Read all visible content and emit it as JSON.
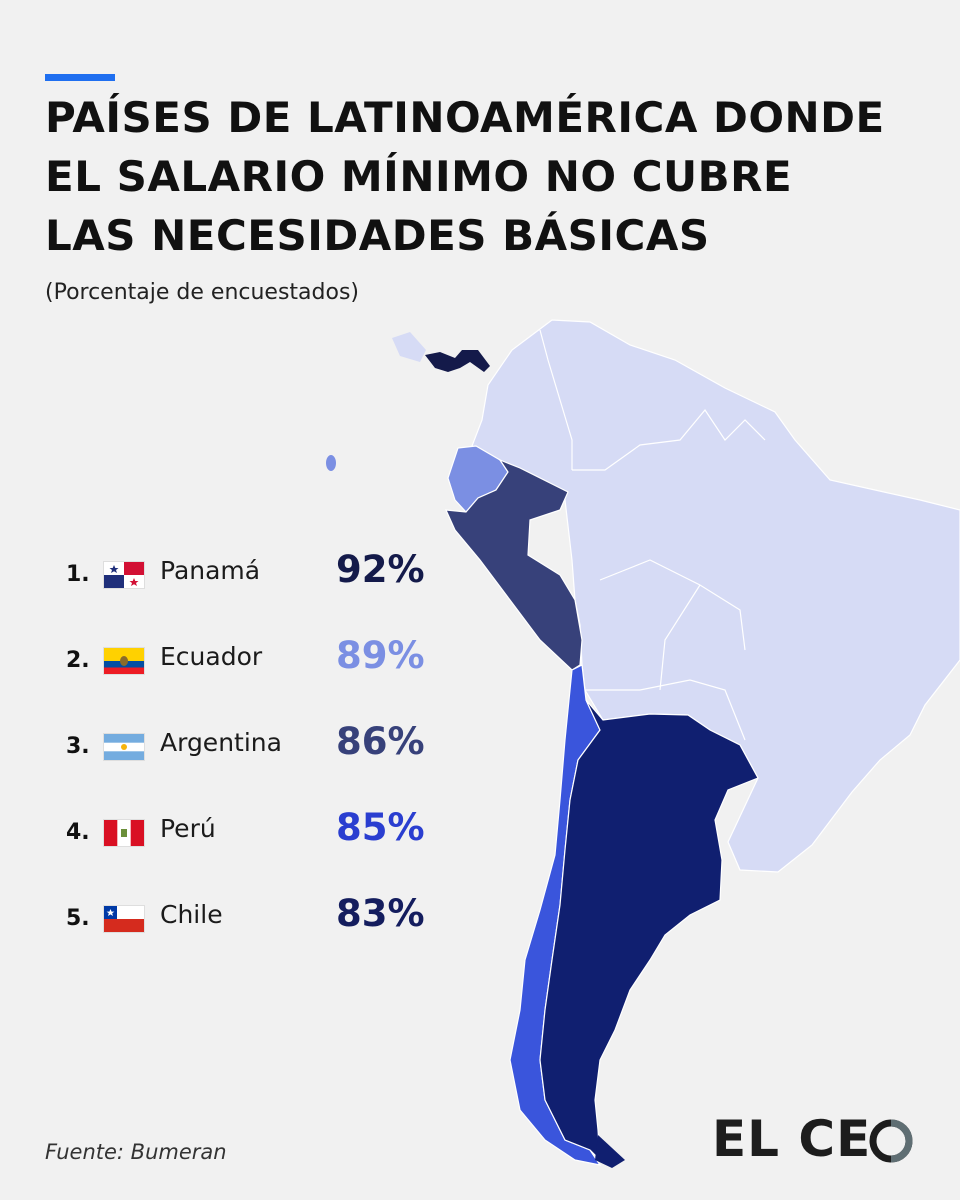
{
  "header": {
    "title_lines": [
      "PAÍSES DE LATINOAMÉRICA DONDE",
      "EL SALARIO MÍNIMO NO CUBRE",
      "LAS NECESIDADES BÁSICAS"
    ],
    "subtitle": "(Porcentaje de encuestados)"
  },
  "ranking": [
    {
      "rank": "1.",
      "country": "Panamá",
      "value": "92%",
      "color": "#141a4a",
      "flag": "panama-flag-icon"
    },
    {
      "rank": "2.",
      "country": "Ecuador",
      "value": "89%",
      "color": "#7b8fe3",
      "flag": "ecuador-flag-icon"
    },
    {
      "rank": "3.",
      "country": "Argentina",
      "value": "86%",
      "color": "#37417a",
      "flag": "argentina-flag-icon"
    },
    {
      "rank": "4.",
      "country": "Perú",
      "value": "85%",
      "color": "#2a3ed0",
      "flag": "peru-flag-icon"
    },
    {
      "rank": "5.",
      "country": "Chile",
      "value": "83%",
      "color": "#141d5e",
      "flag": "chile-flag-icon"
    }
  ],
  "map_colors": {
    "base": "#d6dbf5",
    "panama": "#141a4a",
    "ecuador": "#7b8fe3",
    "peru": "#37417a",
    "chile": "#3a55dc",
    "argentina": "#101f70",
    "accent": "#1f6ff0"
  },
  "footer": {
    "source": "Fuente: Bumeran",
    "logo_prefix": "EL CE",
    "logo_suffix": "O"
  }
}
